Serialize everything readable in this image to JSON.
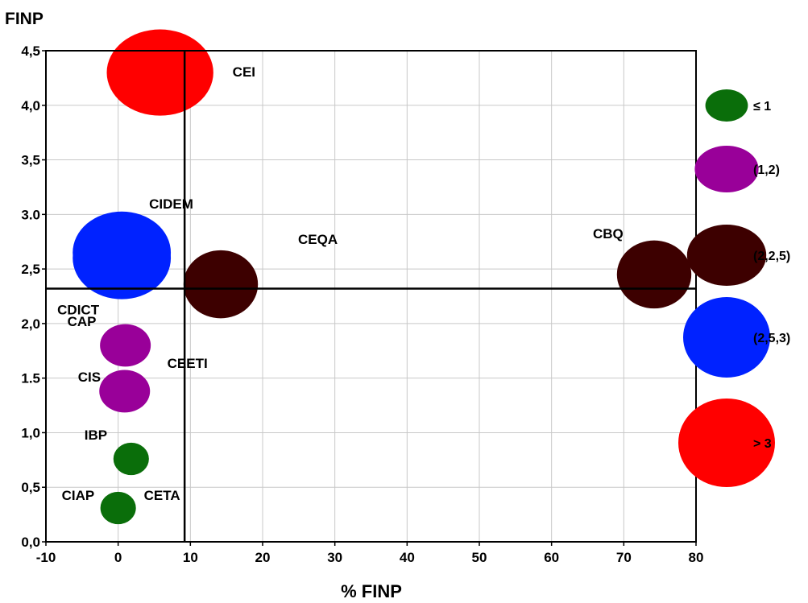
{
  "chart_data": {
    "type": "scatter",
    "xlabel": "% FINP",
    "ylabel": "FINP",
    "xlim": [
      -10,
      80
    ],
    "ylim": [
      0,
      4.5
    ],
    "x_ticks": [
      "-10",
      "0",
      "10",
      "20",
      "30",
      "40",
      "50",
      "60",
      "70",
      "80"
    ],
    "y_ticks": [
      "0,0",
      "0,5",
      "1,0",
      "1.5",
      "2,0",
      "2,5",
      "3.0",
      "3,5",
      "4,0",
      "4,5"
    ],
    "grid": true,
    "reference_lines": {
      "x": 9.2,
      "y": 2.32
    },
    "colors": {
      "le1": "#0a6e0a",
      "1to2": "#990099",
      "2to2_5": "#3d0000",
      "2_5to3": "#0022ff",
      "gt3": "#ff0000"
    },
    "points": [
      {
        "label": "CEI",
        "x": 5.8,
        "y": 4.3,
        "cls": "gt3"
      },
      {
        "label": "CIDEM",
        "x": 0.5,
        "y": 2.65,
        "cls": "2_5to3"
      },
      {
        "label": "CDICT",
        "x": 0.5,
        "y": 2.6,
        "cls": "2_5to3"
      },
      {
        "label": "CEQA",
        "x": 14.2,
        "y": 2.36,
        "cls": "2to2_5"
      },
      {
        "label": "CBQ",
        "x": 74.2,
        "y": 2.45,
        "cls": "2to2_5"
      },
      {
        "label": "CAP",
        "x": 1.0,
        "y": 1.8,
        "cls": "1to2"
      },
      {
        "label": "CEETI",
        "x": 1.0,
        "y": 1.8,
        "cls": "1to2"
      },
      {
        "label": "CIS",
        "x": 0.9,
        "y": 1.38,
        "cls": "1to2"
      },
      {
        "label": "IBP",
        "x": 1.8,
        "y": 0.76,
        "cls": "le1"
      },
      {
        "label": "CIAP",
        "x": 0.0,
        "y": 0.31,
        "cls": "le1"
      },
      {
        "label": "CETA",
        "x": 0.0,
        "y": 0.31,
        "cls": "le1"
      }
    ],
    "legend": [
      {
        "label": "≤ 1",
        "cls": "le1"
      },
      {
        "label": "(1,2)",
        "cls": "1to2"
      },
      {
        "label": "(2,2,5)",
        "cls": "2to2_5"
      },
      {
        "label": "(2,5,3)",
        "cls": "2_5to3"
      },
      {
        "label": "> 3",
        "cls": "gt3"
      }
    ]
  }
}
